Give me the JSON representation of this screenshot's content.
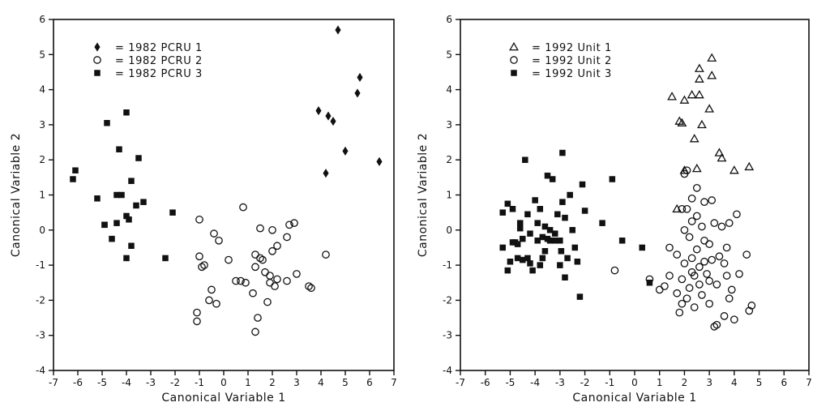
{
  "chart_data": [
    {
      "type": "scatter",
      "xlabel": "Canonical Variable 1",
      "ylabel": "Canonical Variable 2",
      "xlim": [
        -7,
        7
      ],
      "ylim": [
        -4,
        6
      ],
      "xticks": [
        -7,
        -6,
        -5,
        -4,
        -3,
        -2,
        -1,
        0,
        1,
        2,
        3,
        4,
        5,
        6,
        7
      ],
      "yticks": [
        -4,
        -3,
        -2,
        -1,
        0,
        1,
        2,
        3,
        4,
        5,
        6
      ],
      "legend_position": "top-left",
      "series": [
        {
          "name": "= 1982 PCRU 1",
          "marker": "diamond",
          "points": [
            [
              3.9,
              3.4
            ],
            [
              4.3,
              3.25
            ],
            [
              4.5,
              3.1
            ],
            [
              4.7,
              5.7
            ],
            [
              5.0,
              2.25
            ],
            [
              5.5,
              3.9
            ],
            [
              5.6,
              4.35
            ],
            [
              6.4,
              1.95
            ],
            [
              4.2,
              1.62
            ]
          ]
        },
        {
          "name": "= 1982 PCRU 2",
          "marker": "circle",
          "points": [
            [
              -1.0,
              0.3
            ],
            [
              0.8,
              0.65
            ],
            [
              -0.4,
              -0.1
            ],
            [
              -0.2,
              -0.3
            ],
            [
              -1.0,
              -0.75
            ],
            [
              -0.8,
              -1.0
            ],
            [
              -0.9,
              -1.05
            ],
            [
              -0.5,
              -1.7
            ],
            [
              -0.6,
              -2.0
            ],
            [
              -0.3,
              -2.1
            ],
            [
              -1.1,
              -2.35
            ],
            [
              -1.1,
              -2.6
            ],
            [
              0.2,
              -0.85
            ],
            [
              0.5,
              -1.45
            ],
            [
              0.7,
              -1.45
            ],
            [
              0.9,
              -1.5
            ],
            [
              1.2,
              -1.8
            ],
            [
              1.3,
              -0.7
            ],
            [
              1.3,
              -1.05
            ],
            [
              1.5,
              -0.8
            ],
            [
              1.6,
              -0.85
            ],
            [
              1.5,
              0.05
            ],
            [
              1.7,
              -1.2
            ],
            [
              1.9,
              -1.3
            ],
            [
              1.8,
              -2.05
            ],
            [
              1.4,
              -2.5
            ],
            [
              1.3,
              -2.9
            ],
            [
              2.0,
              0.0
            ],
            [
              2.0,
              -0.6
            ],
            [
              2.2,
              -0.45
            ],
            [
              2.1,
              -1.6
            ],
            [
              2.2,
              -1.4
            ],
            [
              2.6,
              -0.2
            ],
            [
              2.6,
              -1.45
            ],
            [
              2.7,
              0.15
            ],
            [
              2.9,
              0.2
            ],
            [
              3.0,
              -1.25
            ],
            [
              3.5,
              -1.6
            ],
            [
              3.6,
              -1.65
            ],
            [
              4.2,
              -0.7
            ],
            [
              1.9,
              -1.5
            ]
          ]
        },
        {
          "name": "= 1982 PCRU 3",
          "marker": "square",
          "points": [
            [
              -6.1,
              1.7
            ],
            [
              -6.2,
              1.45
            ],
            [
              -5.2,
              0.9
            ],
            [
              -4.9,
              0.15
            ],
            [
              -4.8,
              3.05
            ],
            [
              -4.6,
              -0.25
            ],
            [
              -4.4,
              1.0
            ],
            [
              -4.4,
              0.2
            ],
            [
              -4.3,
              2.3
            ],
            [
              -4.2,
              1.0
            ],
            [
              -4.0,
              3.35
            ],
            [
              -4.0,
              -0.8
            ],
            [
              -4.0,
              0.4
            ],
            [
              -3.9,
              0.3
            ],
            [
              -3.8,
              1.4
            ],
            [
              -3.8,
              -0.45
            ],
            [
              -3.6,
              0.7
            ],
            [
              -3.5,
              2.05
            ],
            [
              -3.3,
              0.8
            ],
            [
              -4.9,
              0.15
            ],
            [
              -2.1,
              0.5
            ],
            [
              -2.4,
              -0.8
            ]
          ]
        }
      ]
    },
    {
      "type": "scatter",
      "xlabel": "Canonical Variable 1",
      "ylabel": "Canonical Variable 2",
      "xlim": [
        -7,
        7
      ],
      "ylim": [
        -4,
        6
      ],
      "xticks": [
        -7,
        -6,
        -5,
        -4,
        -3,
        -2,
        -1,
        0,
        1,
        2,
        3,
        4,
        5,
        6,
        7
      ],
      "yticks": [
        -4,
        -3,
        -2,
        -1,
        0,
        1,
        2,
        3,
        4,
        5,
        6
      ],
      "legend_position": "top-left",
      "series": [
        {
          "name": "= 1992 Unit 1",
          "marker": "triangle",
          "points": [
            [
              1.5,
              3.8
            ],
            [
              1.8,
              3.1
            ],
            [
              1.9,
              3.05
            ],
            [
              2.0,
              3.7
            ],
            [
              2.3,
              3.85
            ],
            [
              2.6,
              3.85
            ],
            [
              2.6,
              4.6
            ],
            [
              2.6,
              4.3
            ],
            [
              3.1,
              4.9
            ],
            [
              3.1,
              4.4
            ],
            [
              2.4,
              2.6
            ],
            [
              2.7,
              3.0
            ],
            [
              3.0,
              3.45
            ],
            [
              3.4,
              2.2
            ],
            [
              3.5,
              2.05
            ],
            [
              2.5,
              1.75
            ],
            [
              4.0,
              1.7
            ],
            [
              4.6,
              1.8
            ],
            [
              2.0,
              1.7
            ],
            [
              1.7,
              0.6
            ]
          ]
        },
        {
          "name": "= 1992 Unit 2",
          "marker": "circle",
          "points": [
            [
              -0.8,
              -1.15
            ],
            [
              0.6,
              -1.4
            ],
            [
              1.0,
              -1.7
            ],
            [
              1.2,
              -1.6
            ],
            [
              1.4,
              -0.5
            ],
            [
              1.4,
              -1.3
            ],
            [
              1.7,
              -0.7
            ],
            [
              1.7,
              -1.8
            ],
            [
              1.8,
              -2.35
            ],
            [
              1.9,
              -2.1
            ],
            [
              1.9,
              -1.4
            ],
            [
              2.0,
              -0.95
            ],
            [
              2.0,
              0.0
            ],
            [
              2.0,
              1.6
            ],
            [
              2.1,
              1.7
            ],
            [
              2.1,
              0.6
            ],
            [
              2.2,
              -0.2
            ],
            [
              2.2,
              -1.65
            ],
            [
              2.3,
              -0.8
            ],
            [
              2.3,
              -1.2
            ],
            [
              2.3,
              0.25
            ],
            [
              2.4,
              -2.2
            ],
            [
              2.4,
              -1.3
            ],
            [
              2.5,
              1.2
            ],
            [
              2.5,
              0.4
            ],
            [
              2.5,
              -0.55
            ],
            [
              2.6,
              -1.05
            ],
            [
              2.6,
              -1.55
            ],
            [
              2.7,
              0.1
            ],
            [
              2.7,
              -1.85
            ],
            [
              2.8,
              -0.3
            ],
            [
              2.8,
              -0.9
            ],
            [
              2.8,
              0.8
            ],
            [
              2.9,
              -1.25
            ],
            [
              3.0,
              -0.4
            ],
            [
              3.0,
              -1.45
            ],
            [
              3.0,
              -2.1
            ],
            [
              3.1,
              0.85
            ],
            [
              3.1,
              -0.85
            ],
            [
              3.2,
              0.2
            ],
            [
              3.2,
              -2.75
            ],
            [
              3.3,
              -2.7
            ],
            [
              3.3,
              -1.55
            ],
            [
              3.4,
              -0.75
            ],
            [
              3.5,
              0.1
            ],
            [
              3.6,
              -0.95
            ],
            [
              3.6,
              -2.45
            ],
            [
              3.7,
              -1.3
            ],
            [
              3.7,
              -0.5
            ],
            [
              3.8,
              -1.95
            ],
            [
              3.8,
              0.2
            ],
            [
              3.9,
              -1.7
            ],
            [
              4.0,
              -2.55
            ],
            [
              4.1,
              0.45
            ],
            [
              4.2,
              -1.25
            ],
            [
              4.5,
              -0.7
            ],
            [
              4.6,
              -2.3
            ],
            [
              4.7,
              -2.15
            ],
            [
              2.1,
              -1.95
            ],
            [
              2.3,
              0.9
            ],
            [
              1.9,
              0.6
            ]
          ]
        },
        {
          "name": "= 1992 Unit 3",
          "marker": "square",
          "points": [
            [
              -5.3,
              0.5
            ],
            [
              -5.3,
              -0.5
            ],
            [
              -5.1,
              -1.15
            ],
            [
              -5.1,
              0.75
            ],
            [
              -5.0,
              -0.9
            ],
            [
              -4.9,
              0.6
            ],
            [
              -4.9,
              -0.35
            ],
            [
              -4.8,
              -0.35
            ],
            [
              -4.7,
              -0.4
            ],
            [
              -4.6,
              0.2
            ],
            [
              -4.6,
              0.05
            ],
            [
              -4.5,
              -0.85
            ],
            [
              -4.5,
              -0.25
            ],
            [
              -4.4,
              2.0
            ],
            [
              -4.3,
              0.45
            ],
            [
              -4.3,
              -0.8
            ],
            [
              -4.2,
              -0.1
            ],
            [
              -4.2,
              -0.95
            ],
            [
              -4.1,
              -1.15
            ],
            [
              -4.0,
              0.85
            ],
            [
              -3.9,
              0.2
            ],
            [
              -3.9,
              -0.3
            ],
            [
              -3.8,
              0.6
            ],
            [
              -3.8,
              -1.0
            ],
            [
              -3.7,
              -0.2
            ],
            [
              -3.7,
              -0.8
            ],
            [
              -3.6,
              0.1
            ],
            [
              -3.6,
              -0.6
            ],
            [
              -3.5,
              1.55
            ],
            [
              -3.4,
              0.0
            ],
            [
              -3.4,
              -0.3
            ],
            [
              -3.3,
              1.45
            ],
            [
              -3.2,
              -0.1
            ],
            [
              -3.2,
              -0.3
            ],
            [
              -3.1,
              0.45
            ],
            [
              -3.0,
              -0.3
            ],
            [
              -3.0,
              -1.0
            ],
            [
              -2.9,
              0.8
            ],
            [
              -2.9,
              2.2
            ],
            [
              -2.8,
              -1.35
            ],
            [
              -2.8,
              0.35
            ],
            [
              -2.7,
              -0.8
            ],
            [
              -2.6,
              1.0
            ],
            [
              -2.5,
              0.0
            ],
            [
              -2.4,
              -0.5
            ],
            [
              -2.3,
              -0.9
            ],
            [
              -2.2,
              -1.9
            ],
            [
              -2.1,
              1.3
            ],
            [
              -2.0,
              0.55
            ],
            [
              -1.3,
              0.2
            ],
            [
              -0.9,
              1.45
            ],
            [
              -0.5,
              -0.3
            ],
            [
              0.3,
              -0.5
            ],
            [
              0.6,
              -1.5
            ],
            [
              -4.7,
              -0.8
            ],
            [
              -3.5,
              -0.25
            ],
            [
              -2.95,
              -0.6
            ]
          ]
        }
      ]
    }
  ]
}
